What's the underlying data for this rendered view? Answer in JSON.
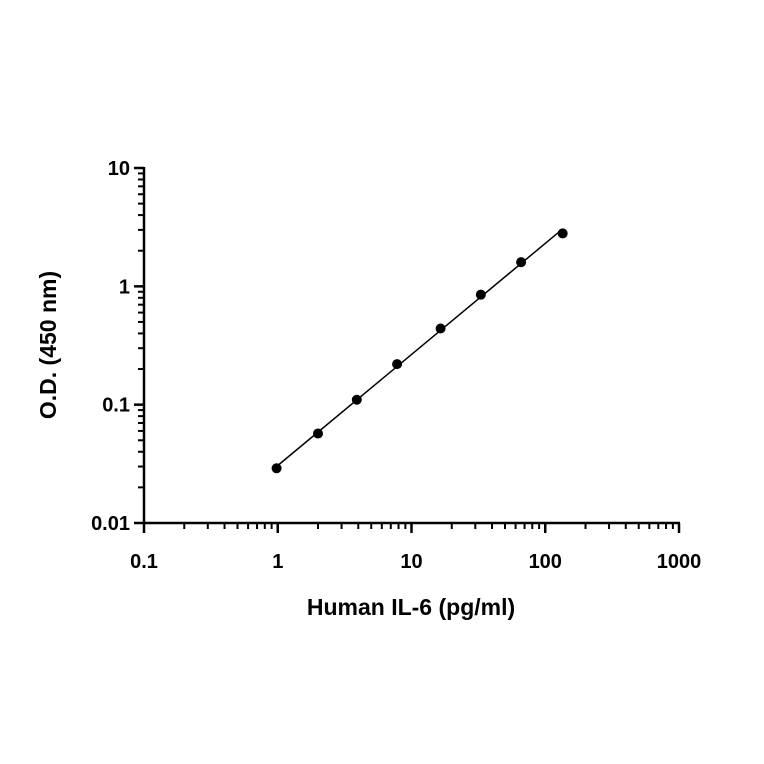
{
  "chart_data": {
    "type": "scatter",
    "title": "",
    "xlabel": "Human IL-6 (pg/ml)",
    "ylabel": "O.D. (450 nm)",
    "xscale": "log",
    "yscale": "log",
    "xlim": [
      0.1,
      1000
    ],
    "ylim": [
      0.01,
      10
    ],
    "x_ticks": [
      "0.1",
      "1",
      "10",
      "100",
      "1000"
    ],
    "y_ticks": [
      "0.01",
      "0.1",
      "1",
      "10"
    ],
    "grid": false,
    "legend": "none",
    "marker_color": "#000000",
    "line_color": "#000000",
    "series": [
      {
        "x": [
          0.98,
          2.0,
          3.9,
          7.8,
          16.5,
          33.0,
          66.0,
          135.0
        ],
        "y": [
          0.029,
          0.057,
          0.11,
          0.22,
          0.44,
          0.85,
          1.6,
          2.8
        ],
        "fit_line": true
      }
    ]
  }
}
